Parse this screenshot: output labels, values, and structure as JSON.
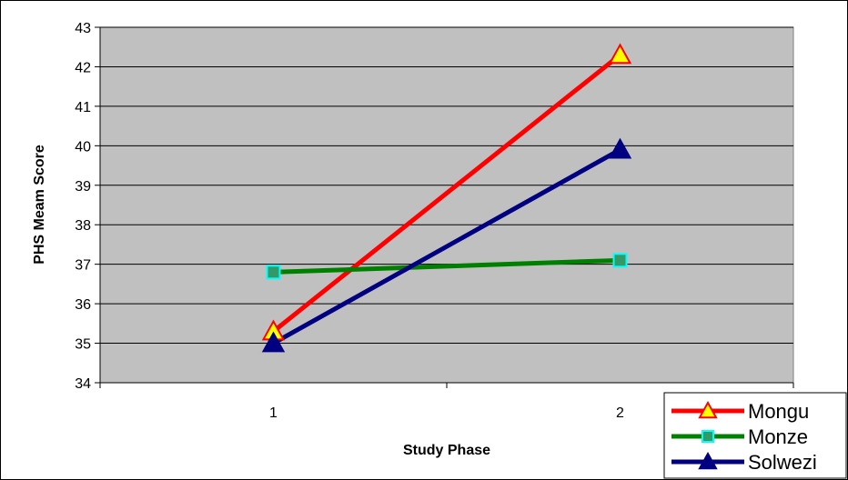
{
  "chart_data": {
    "type": "line",
    "title": "",
    "xlabel": "Study Phase",
    "ylabel": "PHS Meam Score",
    "categories": [
      "1",
      "2"
    ],
    "ylim": [
      34,
      43
    ],
    "yticks": [
      "34",
      "35",
      "36",
      "37",
      "38",
      "39",
      "40",
      "41",
      "42",
      "43"
    ],
    "grid": true,
    "legend_position": "bottom-right",
    "series": [
      {
        "name": "Mongu",
        "values": [
          35.3,
          42.3
        ],
        "color": "#ff0000",
        "marker": "triangle",
        "marker_fill": "#ffff00",
        "marker_stroke": "#ff0000"
      },
      {
        "name": "Monze",
        "values": [
          36.8,
          37.1
        ],
        "color": "#008000",
        "marker": "square",
        "marker_fill": "#339966",
        "marker_stroke": "#00ffff"
      },
      {
        "name": "Solwezi",
        "values": [
          35.0,
          39.9
        ],
        "color": "#000080",
        "marker": "triangle",
        "marker_fill": "#000080",
        "marker_stroke": "#000080"
      }
    ],
    "plot_background": "#c0c0c0"
  }
}
